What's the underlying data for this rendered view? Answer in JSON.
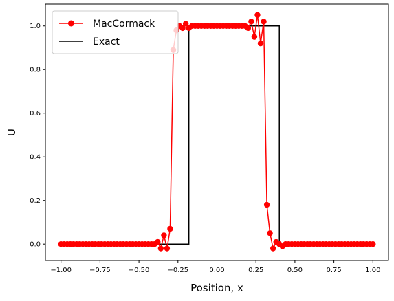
{
  "chart_data": {
    "type": "line",
    "xlabel": "Position, x",
    "ylabel": "U",
    "xlim": [
      -1.1,
      1.1
    ],
    "ylim": [
      -0.075,
      1.1
    ],
    "x_ticks": [
      -1.0,
      -0.75,
      -0.5,
      -0.25,
      0.0,
      0.25,
      0.5,
      0.75,
      1.0
    ],
    "x_tick_labels": [
      "−1.00",
      "−0.75",
      "−0.50",
      "−0.25",
      "0.00",
      "0.25",
      "0.50",
      "0.75",
      "1.00"
    ],
    "y_ticks": [
      0.0,
      0.2,
      0.4,
      0.6,
      0.8,
      1.0
    ],
    "y_tick_labels": [
      "0.0",
      "0.2",
      "0.4",
      "0.6",
      "0.8",
      "1.0"
    ],
    "legend_position": "top-left",
    "grid": false,
    "series": [
      {
        "name": "MacCormack",
        "color": "#ff0000",
        "marker": "circle",
        "x": [
          -1.0,
          -0.98,
          -0.96,
          -0.94,
          -0.92,
          -0.9,
          -0.88,
          -0.86,
          -0.84,
          -0.82,
          -0.8,
          -0.78,
          -0.76,
          -0.74,
          -0.72,
          -0.7,
          -0.68,
          -0.66,
          -0.64,
          -0.62,
          -0.6,
          -0.58,
          -0.56,
          -0.54,
          -0.52,
          -0.5,
          -0.48,
          -0.46,
          -0.44,
          -0.42,
          -0.4,
          -0.38,
          -0.36,
          -0.34,
          -0.32,
          -0.3,
          -0.28,
          -0.26,
          -0.24,
          -0.22,
          -0.2,
          -0.18,
          -0.16,
          -0.14,
          -0.12,
          -0.1,
          -0.08,
          -0.06,
          -0.04,
          -0.02,
          0.0,
          0.02,
          0.04,
          0.06,
          0.08,
          0.1,
          0.12,
          0.14,
          0.16,
          0.18,
          0.2,
          0.22,
          0.24,
          0.26,
          0.28,
          0.3,
          0.32,
          0.34,
          0.36,
          0.38,
          0.4,
          0.42,
          0.44,
          0.46,
          0.48,
          0.5,
          0.52,
          0.54,
          0.56,
          0.58,
          0.6,
          0.62,
          0.64,
          0.66,
          0.68,
          0.7,
          0.72,
          0.74,
          0.76,
          0.78,
          0.8,
          0.82,
          0.84,
          0.86,
          0.88,
          0.9,
          0.92,
          0.94,
          0.96,
          0.98,
          1.0
        ],
        "y": [
          0,
          0,
          0,
          0,
          0,
          0,
          0,
          0,
          0,
          0,
          0,
          0,
          0,
          0,
          0,
          0,
          0,
          0,
          0,
          0,
          0,
          0,
          0,
          0,
          0,
          0,
          0,
          0,
          0,
          0,
          0.0,
          0.01,
          -0.02,
          0.04,
          -0.02,
          0.07,
          0.89,
          0.98,
          1.0,
          0.99,
          1.01,
          0.99,
          1.0,
          1.0,
          1.0,
          1.0,
          1.0,
          1.0,
          1.0,
          1.0,
          1.0,
          1.0,
          1.0,
          1.0,
          1.0,
          1.0,
          1.0,
          1.0,
          1.0,
          1.0,
          0.99,
          1.02,
          0.95,
          1.05,
          0.92,
          1.02,
          0.18,
          0.05,
          -0.02,
          0.01,
          0.0,
          -0.01,
          0.0,
          0,
          0,
          0,
          0,
          0,
          0,
          0,
          0,
          0,
          0,
          0,
          0,
          0,
          0,
          0,
          0,
          0,
          0,
          0,
          0,
          0,
          0,
          0,
          0,
          0,
          0,
          0,
          0
        ]
      },
      {
        "name": "Exact",
        "color": "#000000",
        "marker": "none",
        "x": [
          -1.0,
          -0.2,
          -0.2,
          -0.18,
          -0.18,
          0.38,
          0.38,
          0.4,
          0.4,
          1.0
        ],
        "y": [
          0.0,
          0.0,
          0.0,
          0.0,
          1.0,
          1.0,
          1.0,
          1.0,
          0.0,
          0.0
        ]
      }
    ]
  }
}
